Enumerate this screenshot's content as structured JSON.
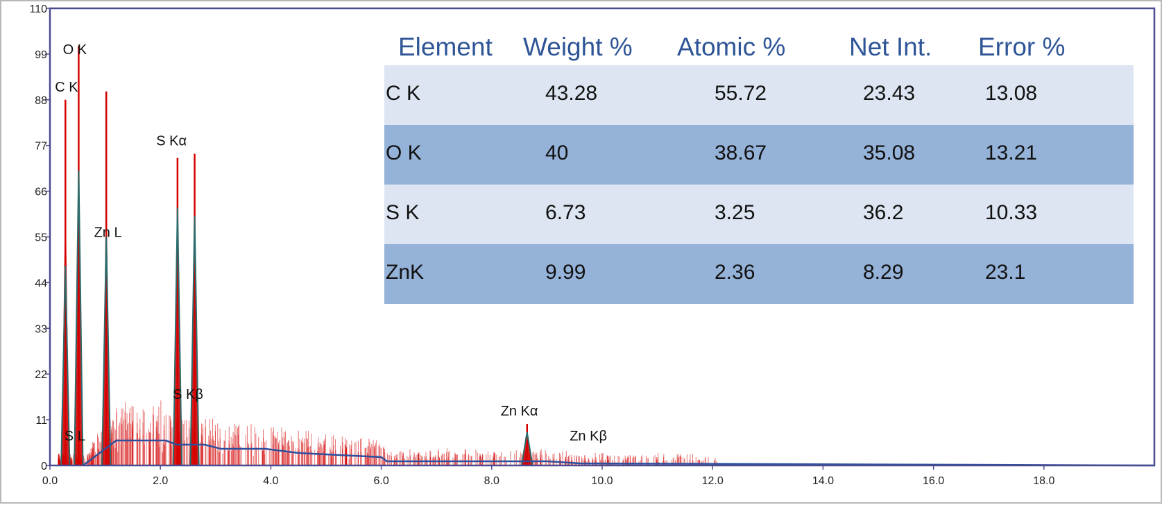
{
  "colors": {
    "axis": "#4b4b8f",
    "spectrum": "#d40000",
    "fit_line": "#2c6b6b",
    "background_line": "#2e4f9e",
    "row_light": "#dce5f1",
    "row_dark": "#95b2d8",
    "header_text": "#2f5597"
  },
  "chart_data": {
    "type": "line",
    "title": "",
    "xlabel": "",
    "ylabel": "",
    "xlim": [
      0,
      20
    ],
    "ylim": [
      0,
      110
    ],
    "x_ticks": [
      "0.0",
      "2.0",
      "4.0",
      "6.0",
      "8.0",
      "10.0",
      "12.0",
      "14.0",
      "16.0",
      "18.0"
    ],
    "y_ticks": [
      "0",
      "11",
      "22",
      "33",
      "44",
      "55",
      "66",
      "77",
      "88",
      "99",
      "110"
    ],
    "grid": false,
    "peaks": [
      {
        "x": 0.28,
        "y": 88,
        "fit": 48
      },
      {
        "x": 0.52,
        "y": 101,
        "fit": 71
      },
      {
        "x": 1.02,
        "y": 90,
        "fit": 55
      },
      {
        "x": 2.31,
        "y": 74,
        "fit": 62
      },
      {
        "x": 2.62,
        "y": 75,
        "fit": 60
      },
      {
        "x": 8.64,
        "y": 10,
        "fit": 8
      }
    ],
    "background": [
      [
        0.6,
        0
      ],
      [
        0.9,
        3
      ],
      [
        1.2,
        6
      ],
      [
        2.1,
        6
      ],
      [
        2.3,
        5
      ],
      [
        2.8,
        5
      ],
      [
        3.1,
        4
      ],
      [
        3.9,
        4
      ],
      [
        4.5,
        3
      ],
      [
        6.0,
        2
      ],
      [
        6.1,
        1
      ],
      [
        9.0,
        1
      ],
      [
        9.6,
        0.5
      ],
      [
        20,
        0
      ]
    ],
    "peak_labels": [
      {
        "text": "O  K",
        "x": 0.45,
        "y": 99
      },
      {
        "text": "C  K",
        "x": 0.3,
        "y": 90
      },
      {
        "text": "S  Kα",
        "x": 2.2,
        "y": 77
      },
      {
        "text": "Zn L",
        "x": 1.05,
        "y": 55
      },
      {
        "text": "S  Kβ",
        "x": 2.5,
        "y": 16
      },
      {
        "text": "Zn Kα",
        "x": 8.5,
        "y": 12
      },
      {
        "text": "Zn Kβ",
        "x": 9.75,
        "y": 6
      },
      {
        "text": "S  L",
        "x": 0.45,
        "y": 6
      }
    ]
  },
  "table": {
    "headers": [
      "Element",
      "Weight %",
      "Atomic %",
      "Net Int.",
      "Error %"
    ],
    "rows": [
      {
        "element": "C K",
        "weight": "43.28",
        "atomic": "55.72",
        "net": "23.43",
        "error": "13.08"
      },
      {
        "element": "O K",
        "weight": "40",
        "atomic": "38.67",
        "net": "35.08",
        "error": "13.21"
      },
      {
        "element": "S K",
        "weight": "6.73",
        "atomic": "3.25",
        "net": "36.2",
        "error": "10.33"
      },
      {
        "element": "ZnK",
        "weight": "9.99",
        "atomic": "2.36",
        "net": "8.29",
        "error": "23.1"
      }
    ]
  }
}
